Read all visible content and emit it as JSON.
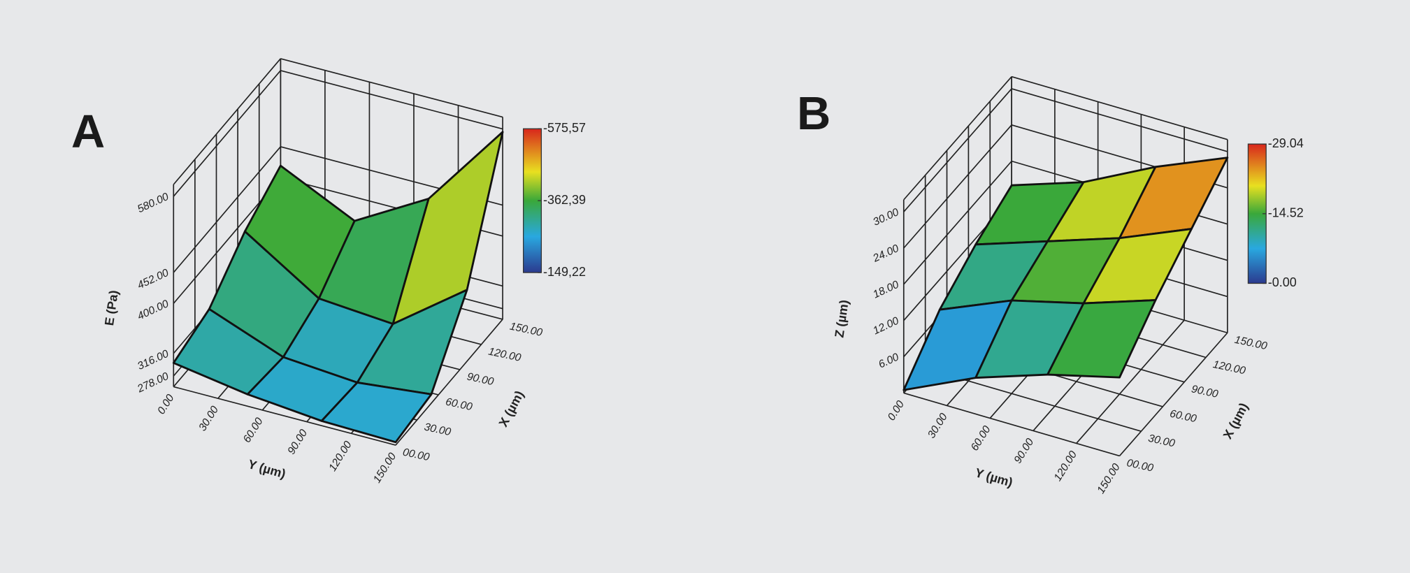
{
  "chart_data": [
    {
      "type": "surface",
      "panel": "A",
      "xlabel": "X (µm)",
      "ylabel": "Y (µm)",
      "zlabel": "E (Pa)",
      "x": [
        0,
        50,
        100,
        150
      ],
      "y": [
        0,
        50,
        100,
        150
      ],
      "values": [
        [
          300,
          280,
          268,
          265
        ],
        [
          320,
          272,
          262,
          275
        ],
        [
          380,
          300,
          290,
          380
        ],
        [
          420,
          360,
          430,
          575
        ]
      ],
      "xlim": [
        0,
        150
      ],
      "ylim": [
        0,
        150
      ],
      "zlim": [
        260,
        600
      ],
      "xticks": [
        {
          "value": 0,
          "label": "00.00"
        },
        {
          "value": 30,
          "label": "30.00"
        },
        {
          "value": 60,
          "label": "60.00"
        },
        {
          "value": 90,
          "label": "90.00"
        },
        {
          "value": 120,
          "label": "120.00"
        },
        {
          "value": 150,
          "label": "150.00"
        }
      ],
      "yticks": [
        {
          "value": 0,
          "label": "0.00"
        },
        {
          "value": 30,
          "label": "30.00"
        },
        {
          "value": 60,
          "label": "60.00"
        },
        {
          "value": 90,
          "label": "90.00"
        },
        {
          "value": 120,
          "label": "120.00"
        },
        {
          "value": 150,
          "label": "150.00"
        }
      ],
      "zticks": [
        {
          "value": 278,
          "label": "278.00"
        },
        {
          "value": 316,
          "label": "316.00"
        },
        {
          "value": 400,
          "label": "400.00"
        },
        {
          "value": 452,
          "label": "452.00"
        },
        {
          "value": 580,
          "label": "580.00"
        }
      ],
      "clim": [
        149.22,
        575.57
      ],
      "cticks": [
        {
          "value": 575.57,
          "label": "-575,57"
        },
        {
          "value": 362.39,
          "label": "-362,39"
        },
        {
          "value": 149.22,
          "label": "-149,22"
        }
      ]
    },
    {
      "type": "surface",
      "panel": "B",
      "xlabel": "X (µm)",
      "ylabel": "Y (µm)",
      "zlabel": "Z (µm)",
      "x": [
        0,
        50,
        100,
        150
      ],
      "y": [
        0,
        50,
        100,
        150
      ],
      "values": [
        [
          0.5,
          6,
          10,
          13
        ],
        [
          7,
          12,
          15,
          19
        ],
        [
          11,
          15,
          19,
          24
        ],
        [
          14,
          18,
          24,
          29
        ]
      ],
      "xlim": [
        0,
        150
      ],
      "ylim": [
        0,
        150
      ],
      "zlim": [
        0,
        32
      ],
      "xticks": [
        {
          "value": 0,
          "label": "00.00"
        },
        {
          "value": 30,
          "label": "30.00"
        },
        {
          "value": 60,
          "label": "60.00"
        },
        {
          "value": 90,
          "label": "90.00"
        },
        {
          "value": 120,
          "label": "120.00"
        },
        {
          "value": 150,
          "label": "150.00"
        }
      ],
      "yticks": [
        {
          "value": 0,
          "label": "0.00"
        },
        {
          "value": 30,
          "label": "30.00"
        },
        {
          "value": 60,
          "label": "60.00"
        },
        {
          "value": 90,
          "label": "90.00"
        },
        {
          "value": 120,
          "label": "120.00"
        },
        {
          "value": 150,
          "label": "150.00"
        }
      ],
      "zticks": [
        {
          "value": 6,
          "label": "6.00"
        },
        {
          "value": 12,
          "label": "12.00"
        },
        {
          "value": 18,
          "label": "18.00"
        },
        {
          "value": 24,
          "label": "24.00"
        },
        {
          "value": 30,
          "label": "30.00"
        }
      ],
      "clim": [
        0,
        29.04
      ],
      "cticks": [
        {
          "value": 29.04,
          "label": "-29.04"
        },
        {
          "value": 14.52,
          "label": "-14.52"
        },
        {
          "value": 0,
          "label": "-0.00"
        }
      ]
    }
  ]
}
